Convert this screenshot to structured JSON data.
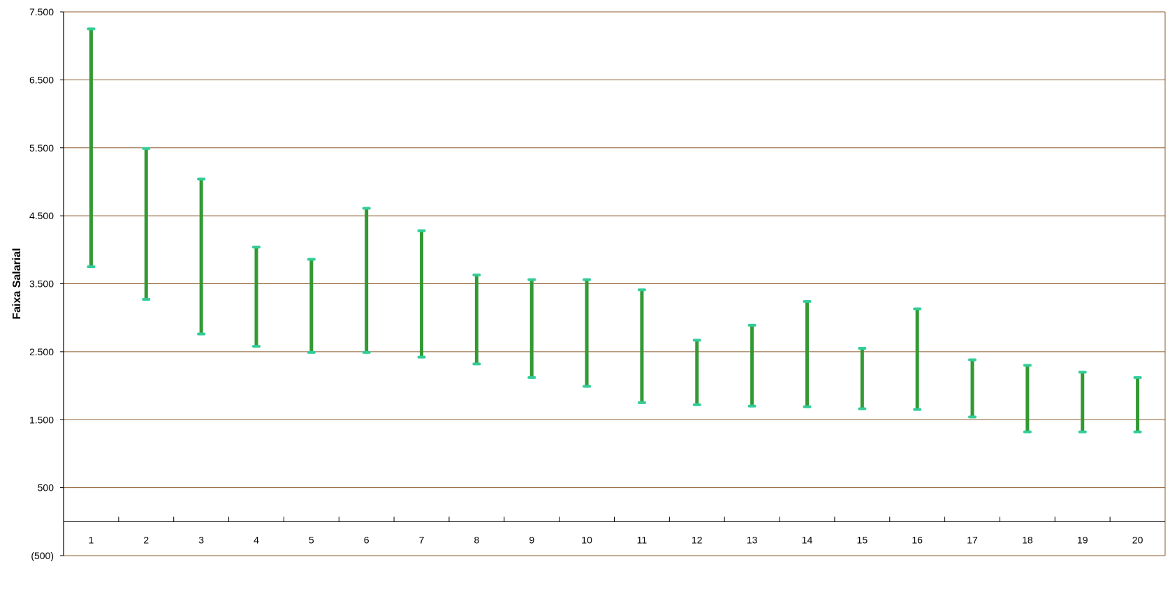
{
  "chart_data": {
    "type": "bar",
    "subtype": "floating-range",
    "title": "",
    "xlabel": "",
    "ylabel": "Faixa  Salarial",
    "ylim": [
      -500,
      7500
    ],
    "y_ticks": [
      -500,
      500,
      1500,
      2500,
      3500,
      4500,
      5500,
      6500,
      7500
    ],
    "y_tick_labels": [
      "(500)",
      "500",
      "1.500",
      "2.500",
      "3.500",
      "4.500",
      "5.500",
      "6.500",
      "7.500"
    ],
    "grid": true,
    "legend": "none",
    "categories": [
      "1",
      "2",
      "3",
      "4",
      "5",
      "6",
      "7",
      "8",
      "9",
      "10",
      "11",
      "12",
      "13",
      "14",
      "15",
      "16",
      "17",
      "18",
      "19",
      "20"
    ],
    "series": [
      {
        "low": [
          3750,
          3270,
          2760,
          2580,
          2490,
          2490,
          2420,
          2320,
          2120,
          1990,
          1750,
          1720,
          1700,
          1690,
          1660,
          1650,
          1540,
          1320,
          1320,
          1320
        ],
        "high": [
          7250,
          5490,
          5040,
          4040,
          3860,
          4610,
          4280,
          3630,
          3560,
          3560,
          3410,
          2670,
          2890,
          3240,
          2550,
          3130,
          2380,
          2300,
          2200,
          2120
        ]
      }
    ],
    "colors": {
      "bar": "#339933",
      "cap": "#33cc99",
      "grid": "#8b5a2b",
      "axis": "#000000"
    }
  }
}
